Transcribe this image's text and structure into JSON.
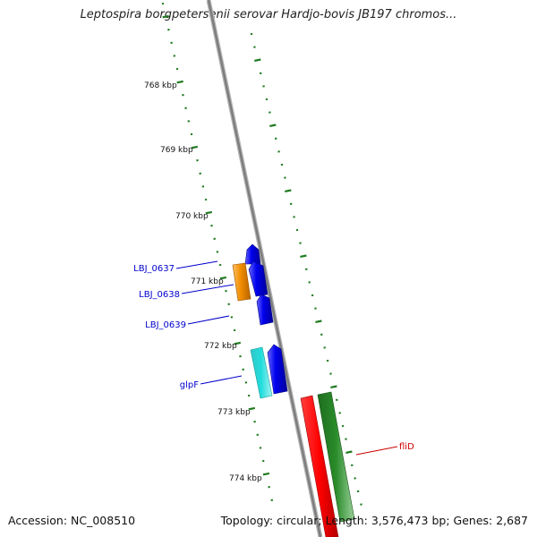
{
  "title": "Leptospira borgpetersenii serovar Hardjo-bovis JB197 chromos...",
  "footer": {
    "accession": "Accession: NC_008510",
    "topology": "Topology: circular; Length: 3,576,473 bp; Genes: 2,687"
  },
  "colors": {
    "backbone": "#8a8a8a",
    "ticks": "#1f7a1f",
    "label_blue": "#0000cc",
    "label_red": "#cc0000",
    "gene_blue": "#0000ee",
    "gene_orange": "#f08c00",
    "gene_cyan": "#1ccccc",
    "gene_red": "#ff0000",
    "gene_green": "#2a8c2a"
  },
  "ruler": {
    "labels": [
      "768 kbp",
      "769 kbp",
      "770 kbp",
      "771 kbp",
      "772 kbp",
      "773 kbp",
      "774 kbp"
    ]
  },
  "genes": [
    {
      "label": "LBJ_0637",
      "color": "#0000cc",
      "side": "left"
    },
    {
      "label": "LBJ_0638",
      "color": "#0000cc",
      "side": "left"
    },
    {
      "label": "LBJ_0639",
      "color": "#0000cc",
      "side": "left"
    },
    {
      "label": "glpF",
      "color": "#0000cc",
      "side": "left"
    },
    {
      "label": "fliD",
      "color": "#cc0000",
      "side": "right"
    }
  ]
}
